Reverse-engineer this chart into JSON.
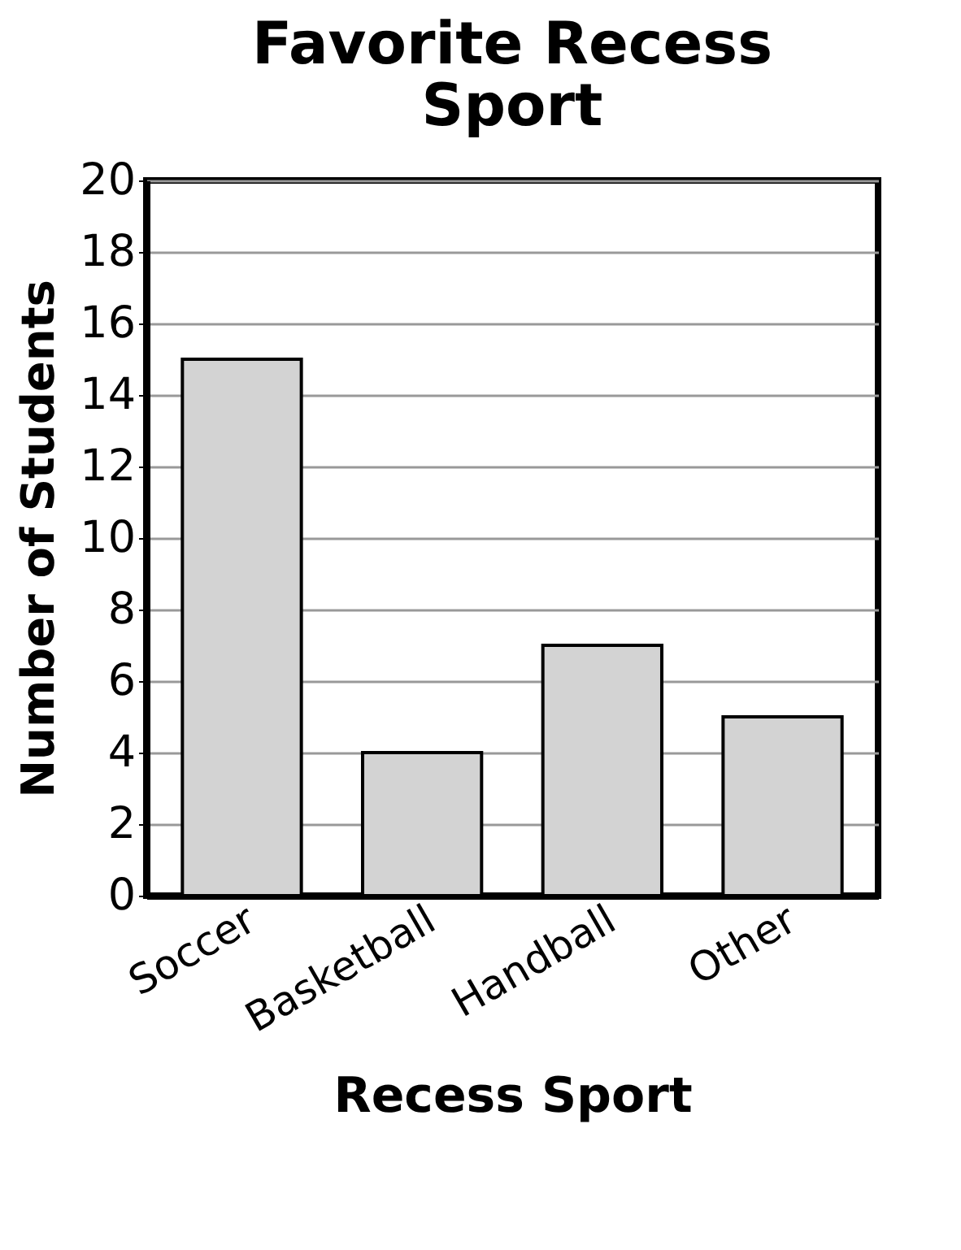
{
  "chart_data": {
    "type": "bar",
    "title": "Favorite Recess Sport",
    "xlabel": "Recess Sport",
    "ylabel": "Number of Students",
    "categories": [
      "Soccer",
      "Basketball",
      "Handball",
      "Other"
    ],
    "values": [
      15,
      4,
      7,
      5
    ],
    "color": "#d3d3d3",
    "ylim": [
      0,
      20
    ],
    "yticks": [
      0,
      2,
      4,
      6,
      8,
      10,
      12,
      14,
      16,
      18,
      20
    ],
    "grid": "y"
  }
}
